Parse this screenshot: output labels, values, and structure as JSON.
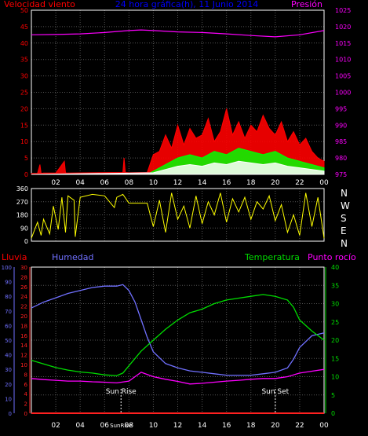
{
  "colors": {
    "background": "#000000",
    "frame": "#ffffff",
    "grid": "#555555",
    "wind_speed": "#ff0000",
    "wind_gust": "#00ff00",
    "wind_avg": "#ffffff",
    "pressure": "#ff00ff",
    "direction": "#ffff00",
    "rain": "#ff2020",
    "humidity": "#7070ff",
    "temperature": "#00dd00",
    "dewpoint": "#ff00ff",
    "sun_marker": "#ffffff",
    "title": "#0000ff"
  },
  "chart_data": [
    {
      "type": "line",
      "id": "wind-pressure",
      "title": "24 hora gráfica(h), 11 Junio 2014",
      "left_label": "Velocidad viento",
      "right_label": "Presión",
      "y_left_ticks": [
        0,
        5,
        10,
        15,
        20,
        25,
        30,
        35,
        40,
        45,
        50
      ],
      "y_left_lim": [
        0,
        50
      ],
      "y_right_ticks": [
        975,
        980,
        985,
        990,
        995,
        1000,
        1005,
        1010,
        1015,
        1020,
        1025
      ],
      "y_right_lim": [
        975,
        1025
      ],
      "x_ticks": [
        "02",
        "04",
        "06",
        "08",
        "10",
        "12",
        "14",
        "16",
        "18",
        "20",
        "22",
        "00"
      ],
      "x_range_hours": [
        0,
        24
      ],
      "grid": true,
      "series": [
        {
          "key": "pressure",
          "axis": "right",
          "x": [
            0,
            2,
            4,
            6,
            8,
            9,
            10,
            12,
            14,
            16,
            18,
            20,
            22,
            24
          ],
          "y": [
            1017.5,
            1017.6,
            1017.8,
            1018.2,
            1018.8,
            1019.0,
            1018.8,
            1018.4,
            1018.2,
            1017.8,
            1017.3,
            1016.9,
            1017.5,
            1018.8
          ]
        },
        {
          "key": "wind_speed",
          "axis": "left",
          "x": [
            0,
            0.5,
            0.7,
            0.8,
            1,
            2,
            2.7,
            2.8,
            2.9,
            3,
            5,
            7.5,
            7.6,
            7.7,
            8,
            9.5,
            10,
            10.5,
            11,
            11.5,
            12,
            12.5,
            13,
            13.5,
            14,
            14.5,
            15,
            15.5,
            16,
            16.5,
            17,
            17.5,
            18,
            18.5,
            19,
            19.5,
            20,
            20.5,
            21,
            21.5,
            22,
            22.5,
            23,
            23.5,
            24
          ],
          "y": [
            0.3,
            0.3,
            3,
            0.3,
            0.4,
            0.4,
            4,
            0.5,
            0.4,
            0.4,
            0.5,
            0.6,
            5,
            0.6,
            0.5,
            0.6,
            6,
            7,
            12,
            8,
            15,
            9,
            14,
            11,
            12,
            17,
            10,
            13,
            20,
            12,
            16,
            11,
            15,
            13,
            18,
            14,
            12,
            16,
            10,
            13,
            9,
            11,
            7,
            5,
            4
          ]
        },
        {
          "key": "wind_gust",
          "axis": "left",
          "x": [
            0,
            9.5,
            10,
            11,
            12,
            13,
            14,
            15,
            16,
            17,
            18,
            19,
            20,
            21,
            22,
            23,
            24
          ],
          "y": [
            0,
            0,
            1,
            3,
            5,
            6,
            5,
            7,
            6,
            8,
            7,
            6,
            7,
            5,
            4,
            3,
            2
          ]
        },
        {
          "key": "wind_avg",
          "axis": "left",
          "x": [
            0,
            10,
            11,
            12,
            13,
            14,
            15,
            16,
            17,
            18,
            19,
            20,
            21,
            22,
            23,
            24
          ],
          "y": [
            0,
            0.5,
            1.5,
            2.5,
            3,
            2.5,
            3.5,
            3,
            4,
            3.5,
            3,
            3.5,
            2.5,
            2,
            1.5,
            1
          ]
        }
      ]
    },
    {
      "type": "line",
      "id": "wind-direction",
      "y_left_ticks": [
        0,
        90,
        180,
        270,
        360
      ],
      "y_lim": [
        0,
        360
      ],
      "right_labels": [
        "N",
        "W",
        "S",
        "E",
        "N"
      ],
      "x_ticks": [
        "02",
        "04",
        "06",
        "08",
        "10",
        "12",
        "14",
        "16",
        "18",
        "20",
        "22",
        "00"
      ],
      "series": [
        {
          "key": "direction",
          "x": [
            0,
            0.5,
            0.8,
            1,
            1.5,
            1.8,
            2.2,
            2.5,
            2.8,
            3,
            3.5,
            3.6,
            4,
            5,
            6,
            6.8,
            7,
            7.5,
            8,
            9.5,
            10,
            10.5,
            11,
            11.5,
            12,
            12.5,
            13,
            13.5,
            14,
            14.5,
            15,
            15.5,
            16,
            16.5,
            17,
            17.5,
            18,
            18.5,
            19,
            19.5,
            20,
            20.5,
            21,
            21.5,
            22,
            22.5,
            23,
            23.5,
            24
          ],
          "y": [
            20,
            130,
            40,
            150,
            50,
            240,
            80,
            300,
            60,
            310,
            280,
            30,
            300,
            320,
            310,
            230,
            300,
            320,
            260,
            260,
            100,
            280,
            60,
            330,
            150,
            240,
            90,
            310,
            120,
            270,
            180,
            330,
            130,
            290,
            200,
            300,
            150,
            270,
            220,
            310,
            140,
            250,
            60,
            180,
            40,
            330,
            100,
            300,
            20
          ]
        }
      ]
    },
    {
      "type": "line",
      "id": "rain-humidity-temperature",
      "labels": {
        "rain": "Lluvia",
        "humidity": "Humedad",
        "temperature": "Temperatura",
        "dewpoint": "Punto rocío"
      },
      "y_humidity_ticks": [
        0,
        10,
        20,
        30,
        40,
        50,
        60,
        70,
        80,
        90,
        100
      ],
      "y_rain_ticks": [
        0,
        2,
        4,
        6,
        8,
        10,
        12,
        14,
        16,
        18,
        20,
        22,
        24,
        26,
        28,
        30
      ],
      "y_temp_ticks": [
        0,
        5,
        10,
        15,
        20,
        25,
        30,
        35,
        40
      ],
      "x_ticks": [
        "02",
        "04",
        "06",
        "SunRise",
        "08",
        "10",
        "12",
        "14",
        "16",
        "18",
        "20",
        "22",
        "00"
      ],
      "annotations": [
        {
          "label": "Sun Rise",
          "x_hour": 7.35
        },
        {
          "label": "Sun Set",
          "x_hour": 20.0
        }
      ],
      "series": [
        {
          "key": "humidity",
          "axis": "humidity",
          "x": [
            0,
            1,
            2,
            3,
            4,
            5,
            6,
            7,
            7.5,
            8,
            8.5,
            9,
            9.5,
            10,
            11,
            12,
            13,
            14,
            15,
            16,
            17,
            18,
            19,
            20,
            21,
            21.5,
            22,
            23,
            24
          ],
          "y": [
            72,
            76,
            79,
            82,
            84,
            86,
            87,
            87,
            88,
            84,
            76,
            64,
            52,
            42,
            34,
            31,
            29,
            28,
            27,
            26,
            26,
            26,
            27,
            28,
            31,
            37,
            45,
            53,
            55
          ]
        },
        {
          "key": "temperature",
          "axis": "temp",
          "x": [
            0,
            1,
            2,
            3,
            4,
            5,
            6,
            7,
            7.5,
            8,
            9,
            10,
            11,
            12,
            13,
            14,
            15,
            16,
            17,
            18,
            19,
            20,
            21,
            21.5,
            22,
            23,
            24
          ],
          "y": [
            14.5,
            13.5,
            12.5,
            11.8,
            11.3,
            11,
            10.5,
            10.3,
            11,
            13,
            17,
            20,
            23,
            25.5,
            27.5,
            28.5,
            30,
            31,
            31.5,
            32,
            32.5,
            32,
            31,
            29,
            25.5,
            22.5,
            20
          ]
        },
        {
          "key": "dewpoint",
          "axis": "temp",
          "x": [
            0,
            1,
            2,
            3,
            4,
            5,
            6,
            7,
            8,
            8.5,
            9,
            10,
            11,
            12,
            13,
            14,
            15,
            16,
            17,
            18,
            19,
            20,
            21,
            22,
            23,
            24
          ],
          "y": [
            9.5,
            9.2,
            9,
            8.8,
            8.8,
            8.6,
            8.5,
            8.3,
            8.8,
            10,
            11.2,
            10,
            9.3,
            8.7,
            8,
            8.2,
            8.5,
            8.8,
            9,
            9.3,
            9.5,
            9.5,
            10,
            11,
            11.5,
            12
          ]
        },
        {
          "key": "rain",
          "axis": "rain",
          "x": [
            0,
            24
          ],
          "y": [
            0,
            0
          ]
        }
      ]
    }
  ]
}
